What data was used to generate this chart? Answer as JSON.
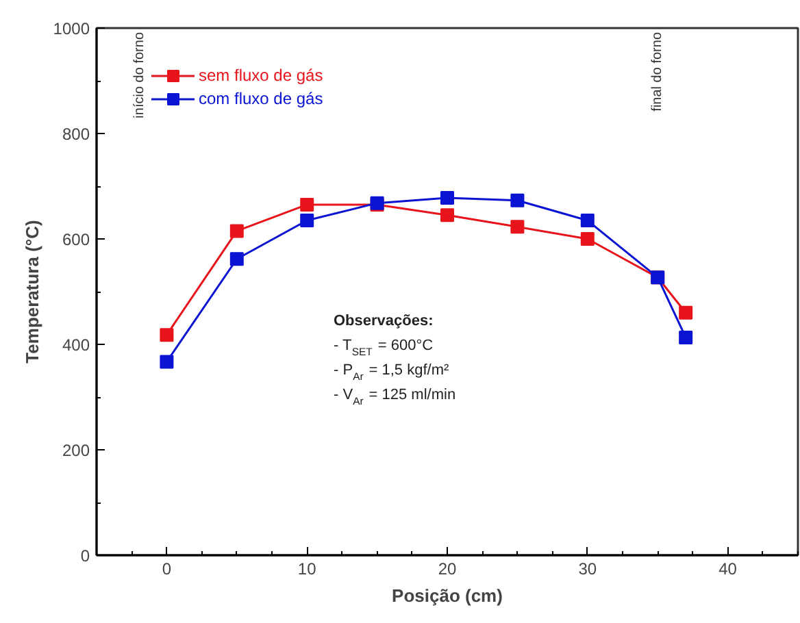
{
  "chart_data": {
    "type": "line",
    "xlabel": "Posição (cm)",
    "ylabel": "Temperatura (°C)",
    "x": [
      0,
      5,
      10,
      15,
      20,
      25,
      30,
      35,
      37
    ],
    "series": [
      {
        "name": "sem fluxo de gás",
        "color": "#e8141c",
        "values": [
          418,
          615,
          665,
          665,
          645,
          623,
          600,
          527,
          460
        ]
      },
      {
        "name": "com fluxo de gás",
        "color": "#0a14d2",
        "values": [
          367,
          562,
          635,
          668,
          678,
          673,
          635,
          527,
          413
        ]
      }
    ],
    "xlim": [
      -5,
      45
    ],
    "xticks": [
      0,
      10,
      20,
      30,
      40
    ],
    "ylim": [
      0,
      1000
    ],
    "yticks": [
      0,
      200,
      400,
      600,
      800,
      1000
    ],
    "marker": "square",
    "line_style": "solid",
    "grid": false,
    "legend": "top left",
    "annotations": [
      "início do forno",
      "final do forno",
      "Observações:",
      "- T$_{SET}$ = 600°C",
      "- P$_{Ar}$ = 1,5 kgf/m²",
      "- V$_{Ar}$ = 125 ml/min"
    ]
  }
}
